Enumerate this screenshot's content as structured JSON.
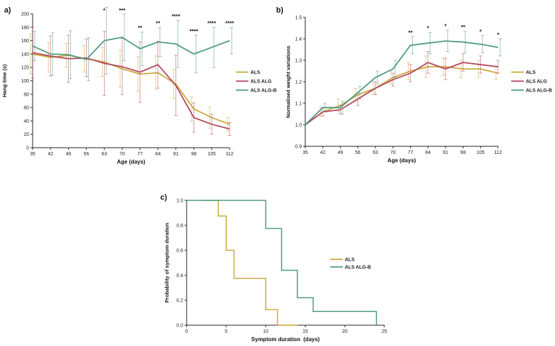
{
  "colors": {
    "ALS": "#c9a93a",
    "ALS ALG": "#b5485f",
    "ALS ALG-B": "#4e9a82",
    "axis": "#222222"
  },
  "chart_data": [
    {
      "panel": "a)",
      "type": "line",
      "xlabel": "Age (days)",
      "ylabel": "Hang time (s)",
      "categories": [
        35,
        42,
        49,
        56,
        63,
        70,
        77,
        84,
        91,
        98,
        105,
        112
      ],
      "xticks": [
        "35",
        "42",
        "49",
        "56",
        "63",
        "70",
        "77",
        "84",
        "91",
        "98",
        "105",
        "112"
      ],
      "yticks": [
        "0",
        "20",
        "40",
        "60",
        "80",
        "100",
        "120",
        "140",
        "160",
        "180",
        "200"
      ],
      "ylim": [
        0,
        200
      ],
      "legend": "right",
      "series": [
        {
          "name": "ALS",
          "values": [
            140,
            135,
            138,
            133,
            128,
            118,
            110,
            112,
            95,
            58,
            45,
            35
          ],
          "errors": [
            30,
            22,
            18,
            20,
            22,
            28,
            26,
            25,
            22,
            18,
            16,
            10
          ]
        },
        {
          "name": "ALS ALG",
          "values": [
            142,
            137,
            133,
            134,
            126,
            121,
            113,
            124,
            93,
            45,
            35,
            28
          ],
          "errors": [
            38,
            30,
            35,
            28,
            48,
            42,
            45,
            35,
            45,
            22,
            15,
            10
          ]
        },
        {
          "name": "ALS ALG-B",
          "values": [
            152,
            140,
            139,
            132,
            160,
            165,
            148,
            158,
            155,
            140,
            150,
            160
          ],
          "errors": [
            22,
            32,
            36,
            32,
            50,
            35,
            25,
            22,
            35,
            28,
            30,
            20
          ]
        }
      ],
      "annotations": [
        {
          "x": 63,
          "text": "*"
        },
        {
          "x": 70,
          "text": "***"
        },
        {
          "x": 77,
          "text": "**"
        },
        {
          "x": 84,
          "text": "**"
        },
        {
          "x": 91,
          "text": "****"
        },
        {
          "x": 98,
          "text": "****"
        },
        {
          "x": 105,
          "text": "****"
        },
        {
          "x": 112,
          "text": "****"
        }
      ]
    },
    {
      "panel": "b)",
      "type": "line",
      "xlabel": "Age (days)",
      "ylabel": "Normalised weight variations",
      "categories": [
        35,
        42,
        49,
        56,
        63,
        70,
        77,
        84,
        91,
        98,
        105,
        112
      ],
      "xticks": [
        "35",
        "42",
        "49",
        "56",
        "63",
        "70",
        "77",
        "84",
        "91",
        "98",
        "105",
        "112"
      ],
      "yticks": [
        "0.9",
        "1.0",
        "1.1",
        "1.2",
        "1.3",
        "1.4",
        "1.5"
      ],
      "ylim": [
        0.9,
        1.5
      ],
      "legend": "right",
      "series": [
        {
          "name": "ALS",
          "values": [
            1.0,
            1.06,
            1.09,
            1.14,
            1.17,
            1.22,
            1.25,
            1.27,
            1.27,
            1.26,
            1.26,
            1.24
          ],
          "errors": [
            0.0,
            0.02,
            0.03,
            0.03,
            0.03,
            0.03,
            0.04,
            0.05,
            0.04,
            0.04,
            0.04,
            0.03
          ]
        },
        {
          "name": "ALS ALG",
          "values": [
            1.0,
            1.06,
            1.07,
            1.12,
            1.17,
            1.21,
            1.24,
            1.29,
            1.26,
            1.29,
            1.28,
            1.27
          ],
          "errors": [
            0.0,
            0.02,
            0.02,
            0.03,
            0.03,
            0.03,
            0.04,
            0.05,
            0.05,
            0.04,
            0.04,
            0.03
          ]
        },
        {
          "name": "ALS ALG-B",
          "values": [
            1.0,
            1.08,
            1.08,
            1.15,
            1.22,
            1.26,
            1.37,
            1.38,
            1.39,
            1.385,
            1.375,
            1.36
          ],
          "errors": [
            0.0,
            0.02,
            0.03,
            0.03,
            0.03,
            0.04,
            0.04,
            0.05,
            0.05,
            0.05,
            0.04,
            0.04
          ]
        }
      ],
      "annotations": [
        {
          "x": 77,
          "text": "**"
        },
        {
          "x": 84,
          "text": "*"
        },
        {
          "x": 91,
          "text": "*"
        },
        {
          "x": 98,
          "text": "**"
        },
        {
          "x": 105,
          "text": "*"
        },
        {
          "x": 112,
          "text": "*"
        }
      ]
    },
    {
      "panel": "c)",
      "type": "line",
      "subtype": "step",
      "xlabel": "Symptom duration  (days)",
      "ylabel": "Probability of symptom duration",
      "xticks": [
        "0",
        "5",
        "10",
        "15",
        "20",
        "25"
      ],
      "yticks": [
        "0.0",
        "0.2",
        "0.4",
        "0.6",
        "0.8",
        "1.0"
      ],
      "xlim": [
        0,
        25
      ],
      "ylim": [
        0,
        1
      ],
      "legend": "right",
      "series": [
        {
          "name": "ALS",
          "x": [
            2,
            4,
            5,
            6,
            8,
            10,
            11.5,
            14
          ],
          "values": [
            1.0,
            0.875,
            0.6,
            0.375,
            0.375,
            0.125,
            0.0,
            0.0
          ]
        },
        {
          "name": "ALS ALG-B",
          "x": [
            0,
            8,
            10,
            12,
            14,
            16,
            22,
            24
          ],
          "values": [
            1.0,
            1.0,
            0.775,
            0.44,
            0.22,
            0.11,
            0.11,
            0.0
          ]
        }
      ]
    }
  ]
}
